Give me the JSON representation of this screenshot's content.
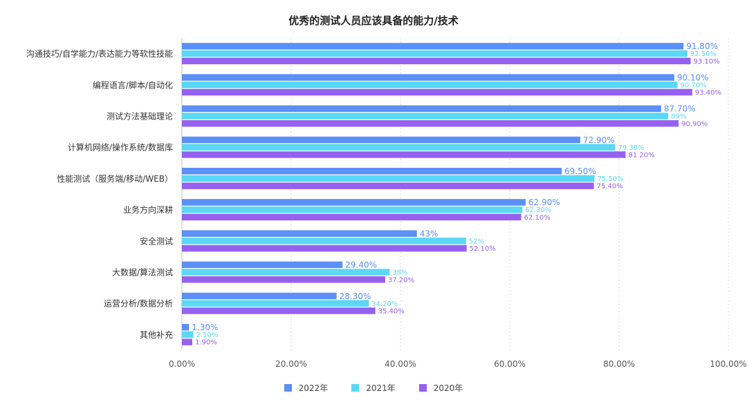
{
  "chart_data": {
    "type": "bar",
    "orientation": "horizontal",
    "title": "优秀的测试人员应该具备的能力/技术",
    "categories": [
      "沟通技巧/自学能力/表达能力等软性技能",
      "编程语言/脚本/自动化",
      "测试方法基础理论",
      "计算机网络/操作系统/数据库",
      "性能测试（服务端/移动/WEB）",
      "业务方向深耕",
      "安全测试",
      "大数据/算法测试",
      "运营分析/数据分析",
      "其他补充"
    ],
    "series": [
      {
        "name": "2022年",
        "color": "#5B8FF9",
        "values": [
          91.8,
          90.1,
          87.7,
          72.9,
          69.5,
          62.9,
          43,
          29.4,
          28.3,
          1.3
        ],
        "labels": [
          "91.80%",
          "90.10%",
          "87.70%",
          "72.90%",
          "69.50%",
          "62.90%",
          "43%",
          "29.40%",
          "28.30%",
          "1.30%"
        ]
      },
      {
        "name": "2021年",
        "color": "#5AD8F5",
        "values": [
          92.5,
          90.7,
          89,
          79.3,
          75.5,
          62.3,
          52,
          38,
          34.2,
          2.1
        ],
        "labels": [
          "92.50%",
          "90.70%",
          "89%",
          "79.30%",
          "75.50%",
          "62.30%",
          "52%",
          "38%",
          "34.20%",
          "2.10%"
        ]
      },
      {
        "name": "2020年",
        "color": "#9661F0",
        "values": [
          93.1,
          93.4,
          90.9,
          81.2,
          75.4,
          62.1,
          52.1,
          37.2,
          35.4,
          1.9
        ],
        "labels": [
          "93.10%",
          "93.40%",
          "90.90%",
          "81.20%",
          "75.40%",
          "62.10%",
          "52.10%",
          "37.20%",
          "35.40%",
          "1.90%"
        ]
      }
    ],
    "xlim": [
      0,
      100
    ],
    "xticks": [
      0,
      20,
      40,
      60,
      80,
      100
    ],
    "xtick_labels": [
      "0.00%",
      "20.00%",
      "40.00%",
      "60.00%",
      "80.00%",
      "100.00%"
    ],
    "grid": "vertical dashed",
    "legend_position": "bottom"
  }
}
